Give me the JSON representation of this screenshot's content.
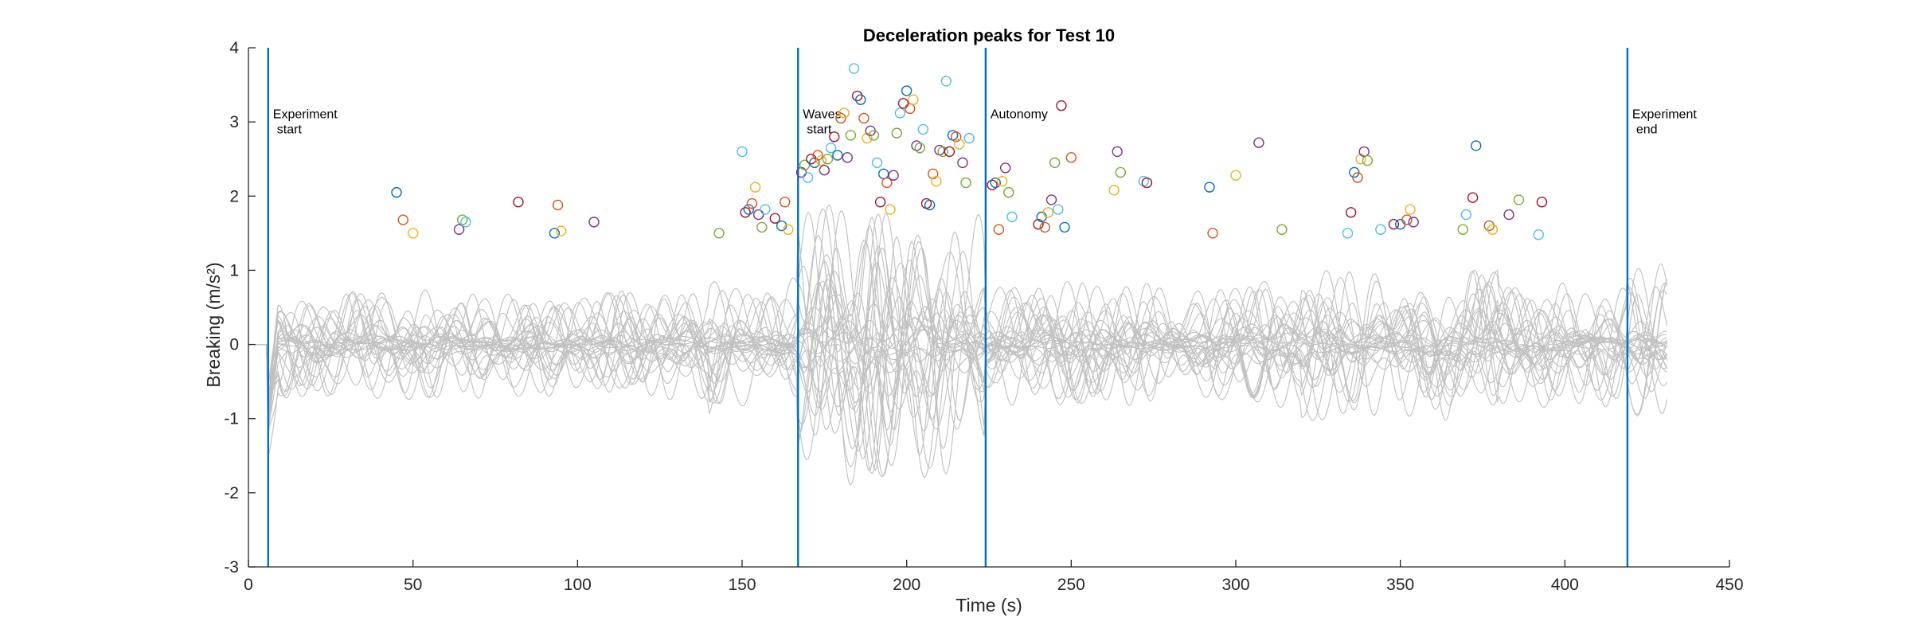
{
  "chart_data": {
    "type": "line",
    "title": "Deceleration peaks for Test 10",
    "xlabel": "Time (s)",
    "ylabel": "Breaking (m/s²)",
    "xlim": [
      0,
      450
    ],
    "ylim": [
      -3,
      4
    ],
    "xticks": [
      0,
      50,
      100,
      150,
      200,
      250,
      300,
      350,
      400,
      450
    ],
    "yticks": [
      -3,
      -2,
      -1,
      0,
      1,
      2,
      3,
      4
    ],
    "grid": false,
    "trace_color": "#c0c0c0",
    "event_line_color": "#0072bd",
    "traces_time_range": [
      0,
      431
    ],
    "event_lines": [
      {
        "x": 6,
        "label_lines": [
          "Experiment",
          "start"
        ]
      },
      {
        "x": 167,
        "label_lines": [
          "Waves",
          "start"
        ]
      },
      {
        "x": 224,
        "label_lines": [
          "Autonomy"
        ]
      },
      {
        "x": 419,
        "label_lines": [
          "Experiment",
          "end"
        ]
      }
    ],
    "peak_colors": [
      "#0072bd",
      "#d95319",
      "#edb120",
      "#7e2f8e",
      "#77ac30",
      "#4dbeee",
      "#a2142f"
    ],
    "peaks": [
      [
        45,
        2.05
      ],
      [
        47,
        1.68
      ],
      [
        50,
        1.5
      ],
      [
        64,
        1.55
      ],
      [
        65,
        1.68
      ],
      [
        66,
        1.65
      ],
      [
        82,
        1.92
      ],
      [
        93,
        1.5
      ],
      [
        94,
        1.88
      ],
      [
        95,
        1.53
      ],
      [
        105,
        1.65
      ],
      [
        143,
        1.5
      ],
      [
        150,
        2.6
      ],
      [
        151,
        1.78
      ],
      [
        152,
        1.82
      ],
      [
        153,
        1.9
      ],
      [
        154,
        2.12
      ],
      [
        155,
        1.75
      ],
      [
        156,
        1.58
      ],
      [
        157,
        1.82
      ],
      [
        160,
        1.7
      ],
      [
        162,
        1.6
      ],
      [
        163,
        1.92
      ],
      [
        164,
        1.55
      ],
      [
        168,
        2.32
      ],
      [
        169,
        2.42
      ],
      [
        170,
        2.25
      ],
      [
        171,
        2.5
      ],
      [
        172,
        2.45
      ],
      [
        173,
        2.55
      ],
      [
        174,
        2.48
      ],
      [
        175,
        2.35
      ],
      [
        176,
        2.5
      ],
      [
        177,
        2.65
      ],
      [
        178,
        2.8
      ],
      [
        179,
        2.55
      ],
      [
        180,
        3.05
      ],
      [
        181,
        3.12
      ],
      [
        182,
        2.52
      ],
      [
        183,
        2.82
      ],
      [
        184,
        3.72
      ],
      [
        185,
        3.35
      ],
      [
        186,
        3.3
      ],
      [
        187,
        3.05
      ],
      [
        188,
        2.78
      ],
      [
        189,
        2.88
      ],
      [
        190,
        2.82
      ],
      [
        191,
        2.45
      ],
      [
        192,
        1.92
      ],
      [
        193,
        2.3
      ],
      [
        194,
        2.18
      ],
      [
        195,
        1.82
      ],
      [
        196,
        2.28
      ],
      [
        197,
        2.85
      ],
      [
        198,
        3.12
      ],
      [
        199,
        3.25
      ],
      [
        200,
        3.42
      ],
      [
        201,
        3.18
      ],
      [
        202,
        3.3
      ],
      [
        203,
        2.68
      ],
      [
        204,
        2.65
      ],
      [
        205,
        2.9
      ],
      [
        206,
        1.9
      ],
      [
        207,
        1.88
      ],
      [
        208,
        2.3
      ],
      [
        209,
        2.2
      ],
      [
        210,
        2.62
      ],
      [
        211,
        2.6
      ],
      [
        212,
        3.55
      ],
      [
        213,
        2.6
      ],
      [
        214,
        2.82
      ],
      [
        215,
        2.8
      ],
      [
        216,
        2.7
      ],
      [
        217,
        2.45
      ],
      [
        218,
        2.18
      ],
      [
        219,
        2.78
      ],
      [
        226,
        2.15
      ],
      [
        227,
        2.18
      ],
      [
        228,
        1.55
      ],
      [
        229,
        2.2
      ],
      [
        230,
        2.38
      ],
      [
        231,
        2.05
      ],
      [
        232,
        1.72
      ],
      [
        240,
        1.62
      ],
      [
        241,
        1.72
      ],
      [
        242,
        1.58
      ],
      [
        243,
        1.78
      ],
      [
        244,
        1.95
      ],
      [
        245,
        2.45
      ],
      [
        246,
        1.82
      ],
      [
        247,
        3.22
      ],
      [
        248,
        1.58
      ],
      [
        250,
        2.52
      ],
      [
        263,
        2.08
      ],
      [
        264,
        2.6
      ],
      [
        265,
        2.32
      ],
      [
        272,
        2.2
      ],
      [
        273,
        2.18
      ],
      [
        292,
        2.12
      ],
      [
        293,
        1.5
      ],
      [
        300,
        2.28
      ],
      [
        307,
        2.72
      ],
      [
        314,
        1.55
      ],
      [
        334,
        1.5
      ],
      [
        335,
        1.78
      ],
      [
        336,
        2.32
      ],
      [
        337,
        2.25
      ],
      [
        338,
        2.5
      ],
      [
        339,
        2.6
      ],
      [
        340,
        2.48
      ],
      [
        344,
        1.55
      ],
      [
        348,
        1.62
      ],
      [
        350,
        1.62
      ],
      [
        352,
        1.68
      ],
      [
        353,
        1.82
      ],
      [
        354,
        1.65
      ],
      [
        369,
        1.55
      ],
      [
        370,
        1.75
      ],
      [
        372,
        1.98
      ],
      [
        373,
        2.68
      ],
      [
        377,
        1.6
      ],
      [
        378,
        1.55
      ],
      [
        383,
        1.75
      ],
      [
        386,
        1.95
      ],
      [
        392,
        1.48
      ],
      [
        393,
        1.92
      ]
    ]
  }
}
